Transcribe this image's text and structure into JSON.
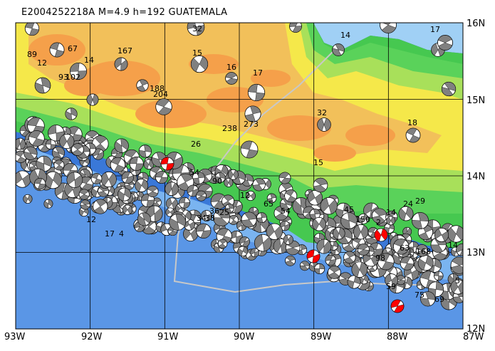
{
  "map": {
    "title": "E20 04252218A M=4.9 h=192 GUATEMALA",
    "title_code": "E20",
    "title_date": "04252218A",
    "title_mag": "M=4.9",
    "title_depth": "h=192",
    "title_region": "GUATEMALA",
    "x_ticks": [
      "93W",
      "92W",
      "91W",
      "90W",
      "89W",
      "88W",
      "87W"
    ],
    "y_ticks": [
      "16N",
      "15N",
      "14N",
      "13N",
      "12N"
    ],
    "highlighted_event_color": "#ff0000",
    "land_colors": [
      "#f5a04a",
      "#f2c05a",
      "#f5e84a",
      "#a8e05a",
      "#5ad25a",
      "#46c850"
    ],
    "sea_colors": [
      "#3a78d8",
      "#5a96e6",
      "#7ab4f0",
      "#a0d0f5"
    ],
    "grid_color": "#000000",
    "event_labels": [
      "168",
      "89",
      "12",
      "67",
      "14",
      "167",
      "93",
      "102",
      "32",
      "15",
      "16",
      "17",
      "12",
      "15",
      "188",
      "204",
      "238",
      "273",
      "12",
      "18",
      "32",
      "14",
      "15",
      "17",
      "26",
      "90",
      "54",
      "65",
      "54",
      "29",
      "24",
      "14",
      "45",
      "150",
      "2",
      "63",
      "168",
      "14",
      "98",
      "75",
      "59",
      "69",
      "5",
      "12",
      "17",
      "4",
      "34",
      "25",
      "38",
      "36"
    ]
  }
}
